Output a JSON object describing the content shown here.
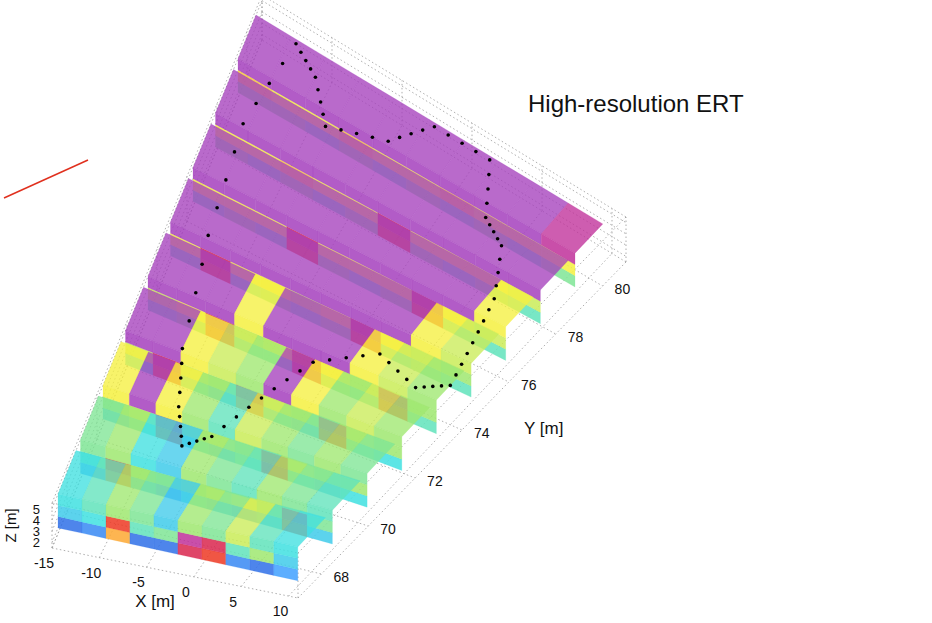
{
  "chart_data": {
    "type": "volume3d",
    "title": "High-resolution ERT",
    "xlabel": "X [m]",
    "ylabel": "Y [m]",
    "zlabel": "Z [m]",
    "xlim": [
      -15,
      11
    ],
    "ylim": [
      67,
      81
    ],
    "zlim": [
      1.5,
      5.5
    ],
    "xticks": [
      -15,
      -10,
      -5,
      0,
      5,
      10
    ],
    "yticks": [
      68,
      70,
      72,
      74,
      76,
      78,
      80
    ],
    "zticks": [
      2,
      3,
      4,
      5
    ],
    "grid": true,
    "clim": [
      0,
      1
    ],
    "x_edges": [
      -15,
      -12.5,
      -10,
      -7.5,
      -5,
      -2.5,
      0,
      2.5,
      5,
      7.5,
      10
    ],
    "z_edges": [
      2,
      3,
      4,
      5
    ],
    "slice_thickness": 1.2,
    "slices": [
      {
        "y": 68,
        "cells": [
          [
            0.1,
            0.15,
            0.7,
            0.1,
            0.1,
            0.85,
            0.8,
            0.15,
            0.1,
            0.2
          ],
          [
            0.3,
            0.35,
            0.8,
            0.4,
            0.45,
            0.9,
            0.85,
            0.4,
            0.5,
            0.3
          ],
          [
            0.35,
            0.4,
            0.5,
            0.45,
            0.3,
            0.5,
            0.45,
            0.55,
            0.4,
            0.35
          ]
        ]
      },
      {
        "y": 69.5,
        "cells": [
          [
            0.2,
            0.75,
            0.3,
            0.2,
            0.35,
            0.3,
            0.25,
            0.3,
            0.8,
            0.3
          ],
          [
            0.4,
            0.8,
            0.5,
            0.45,
            0.5,
            0.55,
            0.6,
            0.5,
            0.85,
            0.45
          ],
          [
            0.45,
            0.5,
            0.35,
            0.3,
            0.5,
            0.45,
            0.4,
            0.5,
            0.45,
            0.4
          ]
        ]
      },
      {
        "y": 71,
        "cells": [
          [
            0.3,
            0.4,
            0.8,
            0.35,
            0.3,
            0.4,
            0.85,
            0.35,
            0.3,
            0.35
          ],
          [
            0.5,
            0.55,
            0.85,
            0.5,
            0.55,
            0.5,
            0.8,
            0.55,
            0.5,
            0.5
          ],
          [
            0.6,
            0.95,
            0.6,
            0.5,
            0.4,
            0.55,
            0.5,
            0.45,
            0.5,
            0.45
          ]
        ]
      },
      {
        "y": 72.5,
        "cells": [
          [
            0.35,
            0.8,
            0.4,
            0.3,
            0.75,
            0.35,
            0.3,
            0.8,
            0.4,
            0.35
          ],
          [
            0.55,
            0.85,
            0.55,
            0.5,
            0.8,
            0.55,
            0.5,
            0.85,
            0.55,
            0.5
          ],
          [
            0.95,
            0.95,
            0.6,
            0.55,
            0.5,
            0.95,
            0.6,
            0.5,
            0.55,
            0.5
          ]
        ]
      },
      {
        "y": 74,
        "cells": [
          [
            0.4,
            0.45,
            0.8,
            0.4,
            0.4,
            0.85,
            0.45,
            0.4,
            0.8,
            0.4
          ],
          [
            0.55,
            0.6,
            0.85,
            0.55,
            0.6,
            0.8,
            0.6,
            0.55,
            0.85,
            0.5
          ],
          [
            0.95,
            0.95,
            0.95,
            0.6,
            0.95,
            0.95,
            0.95,
            0.6,
            0.55,
            0.5
          ]
        ]
      },
      {
        "y": 75.5,
        "cells": [
          [
            0.4,
            0.8,
            0.4,
            0.45,
            0.4,
            0.45,
            0.8,
            0.4,
            0.45,
            0.4
          ],
          [
            0.6,
            0.85,
            0.6,
            0.6,
            0.55,
            0.6,
            0.85,
            0.6,
            0.55,
            0.5
          ],
          [
            0.95,
            0.95,
            0.95,
            0.95,
            0.95,
            0.95,
            0.95,
            0.95,
            0.6,
            0.55
          ]
        ]
      },
      {
        "y": 77,
        "cells": [
          [
            0.4,
            0.45,
            0.4,
            0.8,
            0.45,
            0.4,
            0.45,
            0.8,
            0.4,
            0.4
          ],
          [
            0.6,
            0.6,
            0.6,
            0.85,
            0.6,
            0.6,
            0.6,
            0.85,
            0.6,
            0.55
          ],
          [
            0.95,
            0.95,
            0.95,
            0.95,
            0.95,
            0.95,
            0.95,
            0.95,
            0.95,
            0.6
          ]
        ]
      },
      {
        "y": 78.5,
        "cells": [
          [
            0.45,
            0.4,
            0.45,
            0.4,
            0.45,
            0.8,
            0.45,
            0.4,
            0.45,
            0.4
          ],
          [
            0.6,
            0.6,
            0.65,
            0.6,
            0.6,
            0.85,
            0.6,
            0.6,
            0.6,
            0.55
          ],
          [
            0.95,
            0.95,
            0.95,
            0.95,
            0.95,
            0.95,
            0.95,
            0.95,
            0.95,
            0.95
          ]
        ]
      },
      {
        "y": 80,
        "cells": [
          [
            0.45,
            0.45,
            0.4,
            0.45,
            0.4,
            0.45,
            0.4,
            0.45,
            0.4,
            0.45
          ],
          [
            0.65,
            0.6,
            0.6,
            0.65,
            0.6,
            0.6,
            0.65,
            0.6,
            0.6,
            0.6
          ],
          [
            0.95,
            0.95,
            0.95,
            0.95,
            0.95,
            0.95,
            0.95,
            0.95,
            0.95,
            0.9
          ]
        ]
      }
    ],
    "boundary": {
      "x": [
        -12,
        -10,
        -8,
        -4,
        -2,
        2,
        4,
        6,
        8,
        9,
        10,
        8,
        4,
        0,
        -2,
        -4,
        -6,
        -8,
        -10,
        -12,
        -13
      ],
      "y": [
        80.5,
        80,
        79,
        79.5,
        80.5,
        80.5,
        79,
        78.5,
        77,
        75.5,
        74,
        73.5,
        74,
        73,
        71.5,
        70,
        69.5,
        70.5,
        72,
        75,
        78
      ],
      "z": 5
    }
  }
}
